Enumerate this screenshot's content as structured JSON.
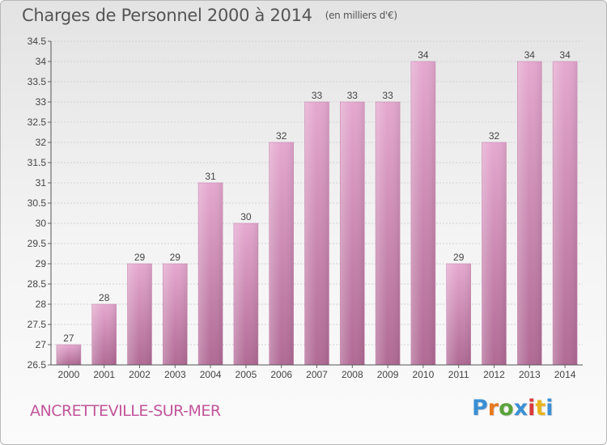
{
  "title": "Charges de Personnel 2000 à 2014",
  "subtitle": "(en milliers d'€)",
  "location": "ANCRETTEVILLE-SUR-MER",
  "logo": {
    "text": "Proxiti",
    "colors": [
      "#3a8fd4",
      "#e8791e",
      "#5aa33a",
      "#3a8fd4",
      "#d93a3a",
      "#e8b41e",
      "#3a8fd4"
    ]
  },
  "colors": {
    "bar_top": "#e5a8cf",
    "bar_bottom": "#b06a95",
    "title": "#555555",
    "location": "#c2569a"
  },
  "chart_data": {
    "type": "bar",
    "title": "Charges de Personnel 2000 à 2014",
    "subtitle": "(en milliers d'€)",
    "xlabel": "",
    "ylabel": "",
    "categories": [
      "2000",
      "2001",
      "2002",
      "2003",
      "2004",
      "2005",
      "2006",
      "2007",
      "2008",
      "2009",
      "2010",
      "2011",
      "2012",
      "2013",
      "2014"
    ],
    "values": [
      27,
      28,
      29,
      29,
      31,
      30,
      32,
      33,
      33,
      33,
      34,
      29,
      32,
      34,
      34
    ],
    "data_labels": [
      "27",
      "28",
      "29",
      "29",
      "31",
      "30",
      "32",
      "33",
      "33",
      "33",
      "34",
      "29",
      "32",
      "34",
      "34"
    ],
    "ylim": [
      26.5,
      34.5
    ],
    "yticks": [
      26.5,
      27,
      27.5,
      28,
      28.5,
      29,
      29.5,
      30,
      30.5,
      31,
      31.5,
      32,
      32.5,
      33,
      33.5,
      34,
      34.5
    ],
    "ytick_labels": [
      "26.5",
      "27",
      "27.5",
      "28",
      "28.5",
      "29",
      "29.5",
      "30",
      "30.5",
      "31",
      "31.5",
      "32",
      "32.5",
      "33",
      "33.5",
      "34",
      "34.5"
    ],
    "grid": true,
    "legend": "none"
  }
}
